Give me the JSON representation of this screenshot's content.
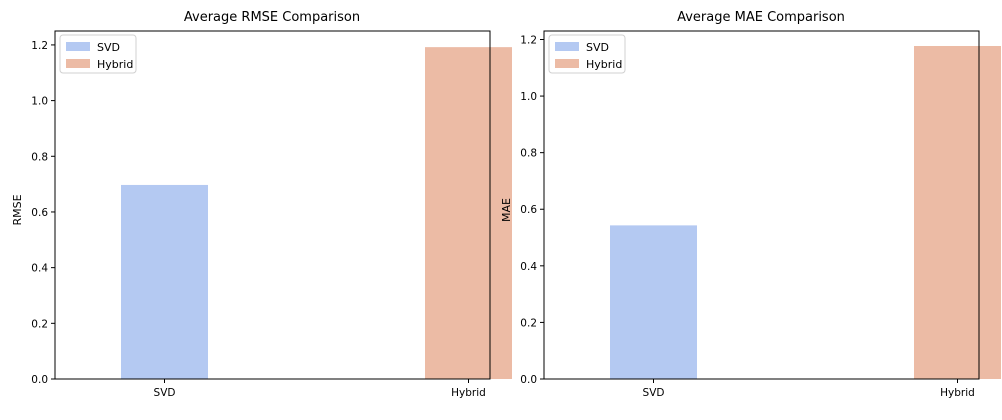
{
  "chart_data": [
    {
      "type": "bar",
      "title": "Average RMSE Comparison",
      "xlabel": "",
      "ylabel": "RMSE",
      "categories": [
        "SVD",
        "Hybrid"
      ],
      "series": [
        {
          "name": "SVD",
          "values": [
            0.697,
            null
          ],
          "color": "#b4c9f2"
        },
        {
          "name": "Hybrid",
          "values": [
            null,
            1.192
          ],
          "color": "#ecbba5"
        }
      ],
      "ylim": [
        0,
        1.25
      ],
      "yticks": [
        "0.0",
        "0.2",
        "0.4",
        "0.6",
        "0.8",
        "1.0",
        "1.2"
      ],
      "grid": false,
      "legend": "upper-left"
    },
    {
      "type": "bar",
      "title": "Average MAE Comparison",
      "xlabel": "",
      "ylabel": "MAE",
      "categories": [
        "SVD",
        "Hybrid"
      ],
      "series": [
        {
          "name": "SVD",
          "values": [
            0.543,
            null
          ],
          "color": "#b4c9f2"
        },
        {
          "name": "Hybrid",
          "values": [
            null,
            1.177
          ],
          "color": "#ecbba5"
        }
      ],
      "ylim": [
        0,
        1.23
      ],
      "yticks": [
        "0.0",
        "0.2",
        "0.4",
        "0.6",
        "0.8",
        "1.0",
        "1.2"
      ],
      "grid": false,
      "legend": "upper-left"
    }
  ]
}
